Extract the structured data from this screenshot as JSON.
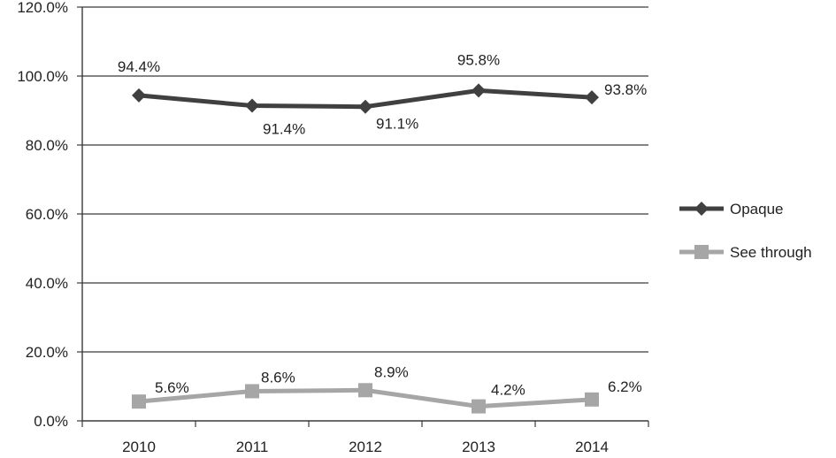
{
  "chart_data": {
    "type": "line",
    "categories": [
      "2010",
      "2011",
      "2012",
      "2013",
      "2014"
    ],
    "ylim": [
      0,
      120
    ],
    "ytick_step": 20,
    "ytick_labels": [
      "0.0%",
      "20.0%",
      "40.0%",
      "60.0%",
      "80.0%",
      "100.0%",
      "120.0%"
    ],
    "grid": true,
    "legend_position": "right",
    "series": [
      {
        "name": "Opaque",
        "marker": "diamond",
        "color": "#404040",
        "values": [
          94.4,
          91.4,
          91.1,
          95.8,
          93.8
        ],
        "labels": [
          "94.4%",
          "91.4%",
          "91.1%",
          "95.8%",
          "93.8%"
        ]
      },
      {
        "name": "See through",
        "marker": "square",
        "color": "#a6a6a6",
        "values": [
          5.6,
          8.6,
          8.9,
          4.2,
          6.2
        ],
        "labels": [
          "5.6%",
          "8.6%",
          "8.9%",
          "4.2%",
          "6.2%"
        ]
      }
    ]
  }
}
